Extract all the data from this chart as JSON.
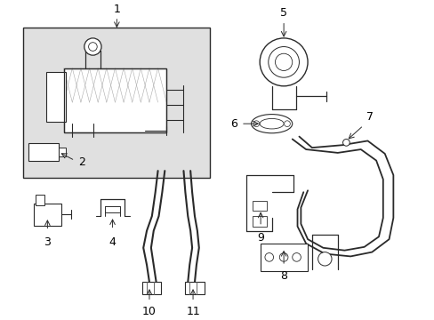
{
  "background_color": "#ffffff",
  "line_color": "#2a2a2a",
  "label_color": "#000000",
  "fig_width": 4.89,
  "fig_height": 3.6,
  "dpi": 100,
  "shading_color": "#e0e0e0"
}
